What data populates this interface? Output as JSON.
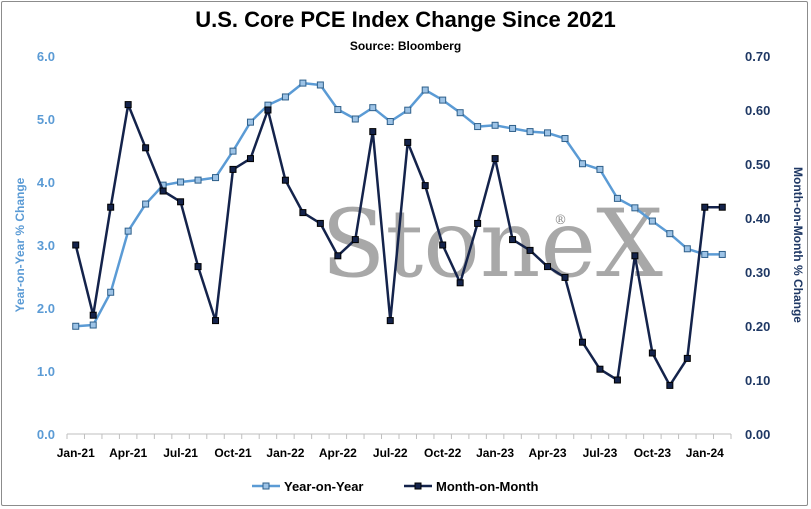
{
  "chart_data": {
    "type": "line",
    "title": "U.S. Core PCE Index Change Since 2021",
    "subtitle": "Source: Bloomberg",
    "watermark": "StoneX",
    "ylabel_left": "Year-on-Year % Change",
    "ylabel_right": "Month-on-Month % Change",
    "ylim_left": [
      0,
      6
    ],
    "ylim_right": [
      0,
      0.7
    ],
    "yticks_left": [
      "0.0",
      "1.0",
      "2.0",
      "3.0",
      "4.0",
      "5.0",
      "6.0"
    ],
    "yticks_right": [
      "0.00",
      "0.10",
      "0.20",
      "0.30",
      "0.40",
      "0.50",
      "0.60",
      "0.70"
    ],
    "x": [
      "Jan-21",
      "Feb-21",
      "Mar-21",
      "Apr-21",
      "May-21",
      "Jun-21",
      "Jul-21",
      "Aug-21",
      "Sep-21",
      "Oct-21",
      "Nov-21",
      "Dec-21",
      "Jan-22",
      "Feb-22",
      "Mar-22",
      "Apr-22",
      "May-22",
      "Jun-22",
      "Jul-22",
      "Aug-22",
      "Sep-22",
      "Oct-22",
      "Nov-22",
      "Dec-22",
      "Jan-23",
      "Feb-23",
      "Mar-23",
      "Apr-23",
      "May-23",
      "Jun-23",
      "Jul-23",
      "Aug-23",
      "Sep-23",
      "Oct-23",
      "Nov-23",
      "Dec-23",
      "Jan-24",
      "Feb-24"
    ],
    "xtick_labels": [
      "Jan-21",
      "Apr-21",
      "Jul-21",
      "Oct-21",
      "Jan-22",
      "Apr-22",
      "Jul-22",
      "Oct-22",
      "Jan-23",
      "Apr-23",
      "Jul-23",
      "Oct-23",
      "Jan-24"
    ],
    "series": [
      {
        "name": "Year-on-Year",
        "axis": "left",
        "color": "#5b9bd5",
        "values": [
          1.71,
          1.73,
          2.25,
          3.22,
          3.65,
          3.95,
          4.0,
          4.03,
          4.07,
          4.49,
          4.95,
          5.22,
          5.35,
          5.57,
          5.54,
          5.15,
          5.0,
          5.18,
          4.96,
          5.14,
          5.46,
          5.3,
          5.1,
          4.88,
          4.9,
          4.85,
          4.8,
          4.78,
          4.69,
          4.29,
          4.2,
          3.74,
          3.59,
          3.38,
          3.18,
          2.94,
          2.85,
          2.85
        ]
      },
      {
        "name": "Month-on-Month",
        "axis": "right",
        "color": "#14234b",
        "values": [
          0.35,
          0.22,
          0.42,
          0.61,
          0.53,
          0.45,
          0.43,
          0.31,
          0.21,
          0.49,
          0.51,
          0.6,
          0.47,
          0.41,
          0.39,
          0.33,
          0.36,
          0.56,
          0.21,
          0.54,
          0.46,
          0.35,
          0.28,
          0.39,
          0.51,
          0.36,
          0.34,
          0.31,
          0.29,
          0.17,
          0.12,
          0.1,
          0.33,
          0.15,
          0.09,
          0.14,
          0.42,
          0.42
        ]
      }
    ],
    "grid": false,
    "legend": "bottom-center"
  }
}
